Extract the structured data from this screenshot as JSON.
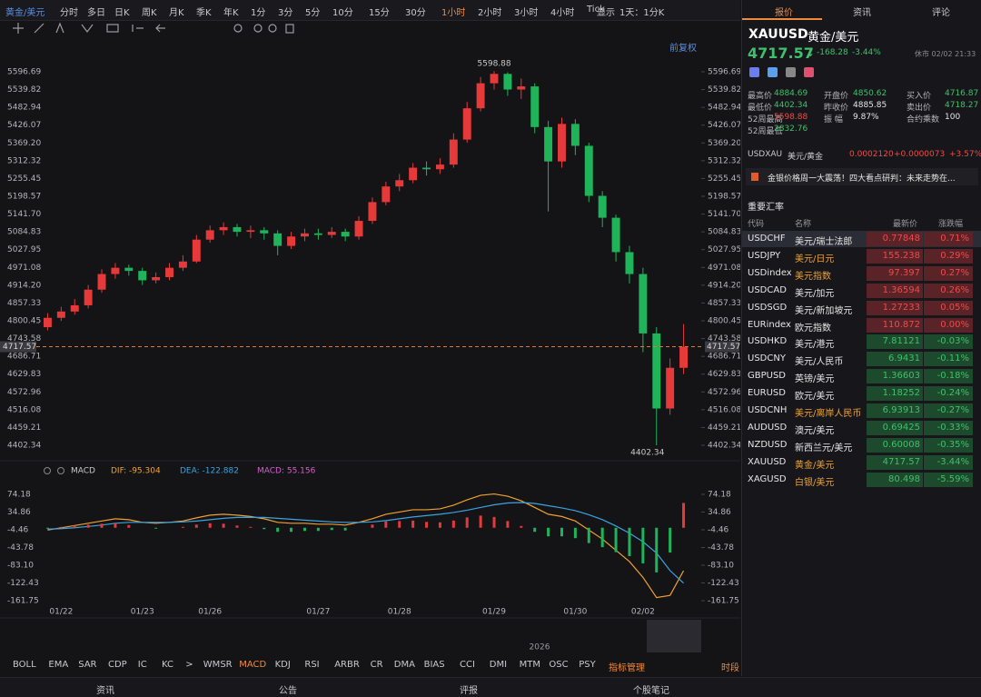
{
  "toolbar": {
    "items": [
      "黄金/美元",
      "分时",
      "多日",
      "日K",
      "周K",
      "月K",
      "季K",
      "年K",
      "1分",
      "3分",
      "5分",
      "10分",
      "15分",
      "30分",
      "1小时",
      "2小时",
      "3小时",
      "4小时",
      "Tick",
      "1天：1分K"
    ],
    "selected": "1小时",
    "display": "显示"
  },
  "chart_label": "前复权",
  "chart_data": [
    {
      "type": "candlestick",
      "categories": [
        null,
        "01/22",
        null,
        null,
        null,
        null,
        null,
        "01/23",
        null,
        null,
        null,
        null,
        "01/26",
        null,
        null,
        null,
        null,
        null,
        null,
        null,
        "01/27",
        null,
        null,
        null,
        null,
        null,
        "01/28",
        null,
        null,
        null,
        null,
        null,
        null,
        "01/29",
        null,
        null,
        null,
        null,
        null,
        "01/30",
        null,
        null,
        null,
        null,
        "02/02",
        null,
        null,
        null
      ],
      "open": [
        4780,
        4810,
        4830,
        4850,
        4900,
        4950,
        4970,
        4960,
        4930,
        4940,
        4970,
        4990,
        5060,
        5090,
        5100,
        5085,
        5090,
        5080,
        5040,
        5070,
        5080,
        5075,
        5085,
        5070,
        5120,
        5180,
        5230,
        5250,
        5290,
        5285,
        5300,
        5380,
        5480,
        5560,
        5590,
        5540,
        5550,
        5420,
        5310,
        5430,
        5360,
        5200,
        5130,
        5020,
        4950,
        4760,
        4520,
        4650
      ],
      "high": [
        4825,
        4845,
        4870,
        4915,
        4965,
        4985,
        4980,
        4970,
        4955,
        4985,
        5010,
        5075,
        5105,
        5115,
        5110,
        5105,
        5100,
        5090,
        5085,
        5095,
        5095,
        5100,
        5095,
        5135,
        5195,
        5245,
        5270,
        5305,
        5310,
        5320,
        5400,
        5500,
        5580,
        5598.88,
        5595,
        5575,
        5560,
        5440,
        5450,
        5445,
        5370,
        5215,
        5140,
        5040,
        4970,
        4780,
        4680,
        4790
      ],
      "low": [
        4770,
        4800,
        4820,
        4840,
        4890,
        4935,
        4945,
        4915,
        4920,
        4930,
        4960,
        4985,
        5050,
        5075,
        5070,
        5065,
        5060,
        5010,
        5030,
        5055,
        5060,
        5065,
        5055,
        5060,
        5110,
        5170,
        5215,
        5240,
        5265,
        5270,
        5290,
        5370,
        5470,
        5540,
        5520,
        5510,
        5400,
        5150,
        5290,
        5330,
        5180,
        5100,
        4990,
        4920,
        4700,
        4402.34,
        4500,
        4630
      ],
      "close": [
        4810,
        4830,
        4850,
        4900,
        4950,
        4970,
        4960,
        4930,
        4940,
        4970,
        4990,
        5060,
        5090,
        5100,
        5085,
        5090,
        5080,
        5040,
        5070,
        5080,
        5075,
        5085,
        5070,
        5120,
        5180,
        5230,
        5250,
        5290,
        5285,
        5300,
        5380,
        5480,
        5560,
        5590,
        5540,
        5550,
        5420,
        5310,
        5430,
        5360,
        5200,
        5130,
        5020,
        4950,
        4760,
        4520,
        4650,
        4717.57
      ],
      "ylim": [
        4373.3,
        5651.9
      ],
      "yticks": [
        5596.69,
        5539.82,
        5482.94,
        5426.07,
        {
          "value": 5369.2,
          "label": "5369.20"
        },
        5312.32,
        5255.45,
        5198.57,
        {
          "value": 5141.7,
          "label": "5141.70"
        },
        5084.83,
        5027.95,
        4971.08,
        {
          "value": 4914.2,
          "label": "4914.20"
        },
        4857.33,
        4800.45,
        4743.58,
        4686.71,
        4629.83,
        4572.96,
        4516.08,
        4459.21,
        4402.34
      ],
      "up_color": "#e5393a",
      "down_color": "#1fb35a",
      "last_color": "#e0792f",
      "year_label": "2026"
    },
    {
      "type": "line",
      "title": "MACD",
      "series": [
        {
          "legend": "DIF: -95.304",
          "color": "#f0a030",
          "values": [
            -5,
            0,
            5,
            10,
            15,
            20,
            18,
            12,
            10,
            12,
            15,
            22,
            28,
            30,
            28,
            25,
            20,
            12,
            10,
            10,
            8,
            8,
            6,
            12,
            20,
            30,
            35,
            40,
            40,
            42,
            50,
            62,
            72,
            75,
            70,
            60,
            45,
            30,
            25,
            15,
            -5,
            -25,
            -50,
            -75,
            -110,
            -155,
            -150,
            -95.304
          ]
        },
        {
          "legend": "DEA: -122.882",
          "color": "#3aa3e3",
          "values": [
            -3,
            -2,
            0,
            3,
            6,
            10,
            12,
            12,
            12,
            12,
            13,
            15,
            18,
            21,
            23,
            23,
            23,
            21,
            19,
            17,
            15,
            13,
            12,
            12,
            13,
            16,
            20,
            24,
            27,
            30,
            34,
            39,
            45,
            51,
            55,
            56,
            54,
            49,
            44,
            38,
            29,
            18,
            4,
            -12,
            -31,
            -56,
            -95,
            -122.882
          ]
        },
        {
          "legend": "MACD: 55.156",
          "color": "#d65fd0",
          "style": "bar",
          "up_color": "#e5393a",
          "down_color": "#1fb35a",
          "values": [
            -2,
            2,
            5,
            7,
            9,
            10,
            6,
            0,
            -2,
            0,
            2,
            7,
            10,
            9,
            5,
            2,
            -3,
            -9,
            -9,
            -7,
            -7,
            -5,
            -6,
            0,
            7,
            14,
            15,
            16,
            13,
            12,
            16,
            23,
            27,
            24,
            15,
            4,
            -9,
            -19,
            -19,
            -23,
            -34,
            -43,
            -54,
            -63,
            -79,
            -99,
            -55,
            55.156
          ]
        }
      ],
      "ylim": [
        -190,
        102.4
      ],
      "yticks": [
        74.18,
        34.86,
        -4.46,
        -43.78,
        {
          "value": -83.1,
          "label": "-83.10"
        },
        -122.43,
        -161.75
      ]
    }
  ],
  "indicator_bar": {
    "items": [
      "BOLL",
      "EMA",
      "SAR",
      "CDP",
      "IC",
      "KC",
      ">",
      "WMSR",
      "MACD",
      "KDJ",
      "RSI",
      "ARBR",
      "CR",
      "DMA",
      "BIAS",
      "CCI",
      "DMI",
      "MTM",
      "OSC",
      "PSY"
    ],
    "selected": "MACD",
    "manage": "指标管理",
    "right": "时段"
  },
  "footer": {
    "tabs": [
      "资讯",
      "公告",
      "评报",
      "个股笔记"
    ]
  },
  "panel": {
    "tabs": [
      "报价",
      "资讯",
      "评论"
    ],
    "selected": "报价",
    "symbol": "XAUUSD",
    "symbol_name": "黄金/美元",
    "price": "4717.57",
    "arrow": "↓",
    "change": "-168.28",
    "change_pct": "-3.44%",
    "status": "休市 02/02 21:33",
    "stats": [
      [
        "最高价",
        "4884.69",
        "开盘价",
        "4850.62",
        "买入价",
        "4716.87"
      ],
      [
        "最低价",
        "4402.34",
        "昨收价",
        "4885.85",
        "卖出价",
        "4718.27"
      ],
      [
        "52周最高",
        "5598.88",
        "振 幅",
        "9.87%",
        "合约乘数",
        "100"
      ],
      [
        "52周最低",
        "2832.76"
      ]
    ],
    "stat_colors": [
      [
        "#3fc06b",
        "#3fc06b",
        "#3fc06b"
      ],
      [
        "#3fc06b",
        "#e6e6e6",
        "#3fc06b"
      ],
      [
        "#ef4a4a",
        "#e6e6e6",
        "#e6e6e6"
      ],
      [
        "#3fc06b"
      ]
    ],
    "cross": [
      "USDXAU",
      "美元/黄金",
      "0.0002120",
      "+0.0000073",
      "+3.57%"
    ],
    "news": "金银价格周一大震荡！四大看点研判：未来走势在...",
    "section": "重要汇率",
    "columns": [
      "代码",
      "名称",
      "最新价",
      "涨跌幅"
    ],
    "rows": [
      [
        "USDCHF",
        "美元/瑞士法郎",
        "0.77848",
        "0.71%"
      ],
      [
        "USDJPY",
        "美元/日元",
        "155.238",
        "0.29%"
      ],
      [
        "USDindex",
        "美元指数",
        "97.397",
        "0.27%"
      ],
      [
        "USDCAD",
        "美元/加元",
        "1.36594",
        "0.26%"
      ],
      [
        "USDSGD",
        "美元/新加坡元",
        "1.27233",
        "0.05%"
      ],
      [
        "EURindex",
        "欧元指数",
        "110.872",
        "0.00%"
      ],
      [
        "USDHKD",
        "美元/港元",
        "7.81121",
        "-0.03%"
      ],
      [
        "USDCNY",
        "美元/人民币",
        "6.9431",
        "-0.11%"
      ],
      [
        "GBPUSD",
        "英镑/美元",
        "1.36603",
        "-0.18%"
      ],
      [
        "EURUSD",
        "欧元/美元",
        "1.18252",
        "-0.24%"
      ],
      [
        "USDCNH",
        "美元/离岸人民币",
        "6.93913",
        "-0.27%"
      ],
      [
        "AUDUSD",
        "澳元/美元",
        "0.69425",
        "-0.33%"
      ],
      [
        "NZDUSD",
        "新西兰元/美元",
        "0.60008",
        "-0.35%"
      ],
      [
        "XAUUSD",
        "黄金/美元",
        "4717.57",
        "-3.44%"
      ],
      [
        "XAGUSD",
        "白银/美元",
        "80.498",
        "-5.59%"
      ]
    ],
    "highlighted": [
      1,
      2,
      10,
      13,
      14
    ],
    "selected_row": 0
  }
}
